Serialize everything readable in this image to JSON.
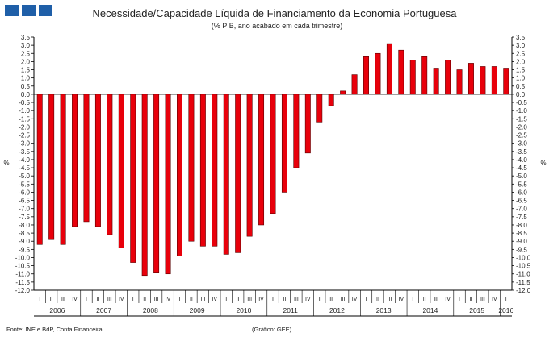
{
  "header": {
    "logo_icon": "three-blue-squares-logo",
    "logo_color": "#1f5fa8"
  },
  "chart_data": {
    "type": "bar",
    "title": "Necessidade/Capacidade Líquida de Financiamento da Economia Portuguesa",
    "subtitle": "(% PIB, ano acabado em cada trimestre)",
    "ylabel_left": "%",
    "ylabel_right": "%",
    "ylim": [
      -12.0,
      3.5
    ],
    "ytick_step": 0.5,
    "grid": false,
    "bar_color": "#e8000b",
    "quarter_labels": [
      "I",
      "II",
      "III",
      "IV"
    ],
    "years": [
      "2006",
      "2007",
      "2008",
      "2009",
      "2010",
      "2011",
      "2012",
      "2013",
      "2014",
      "2015",
      "2016"
    ],
    "categories": [
      "2006 I",
      "2006 II",
      "2006 III",
      "2006 IV",
      "2007 I",
      "2007 II",
      "2007 III",
      "2007 IV",
      "2008 I",
      "2008 II",
      "2008 III",
      "2008 IV",
      "2009 I",
      "2009 II",
      "2009 III",
      "2009 IV",
      "2010 I",
      "2010 II",
      "2010 III",
      "2010 IV",
      "2011 I",
      "2011 II",
      "2011 III",
      "2011 IV",
      "2012 I",
      "2012 II",
      "2012 III",
      "2012 IV",
      "2013 I",
      "2013 II",
      "2013 III",
      "2013 IV",
      "2014 I",
      "2014 II",
      "2014 III",
      "2014 IV",
      "2015 I",
      "2015 II",
      "2015 III",
      "2015 IV",
      "2016 I"
    ],
    "series": [
      {
        "values": [
          -9.2,
          -8.9,
          -9.2,
          -8.1,
          -7.8,
          -8.1,
          -8.6,
          -9.4,
          -10.3,
          -11.1,
          -10.9,
          -11.0,
          -9.9,
          -9.0,
          -9.3,
          -9.3,
          -9.8,
          -9.7,
          -8.7,
          -8.0,
          -7.3,
          -6.0,
          -4.5,
          -3.6,
          -1.7,
          -0.7,
          0.2,
          1.2,
          2.3,
          2.5,
          3.1,
          2.7,
          2.1,
          2.3,
          1.6,
          2.1,
          1.5,
          1.9,
          1.7,
          1.7,
          1.6
        ]
      }
    ]
  },
  "footer": {
    "source": "Fonte: INE e BdP, Conta Financeira",
    "credit": "(Gráfico: GEE)"
  }
}
